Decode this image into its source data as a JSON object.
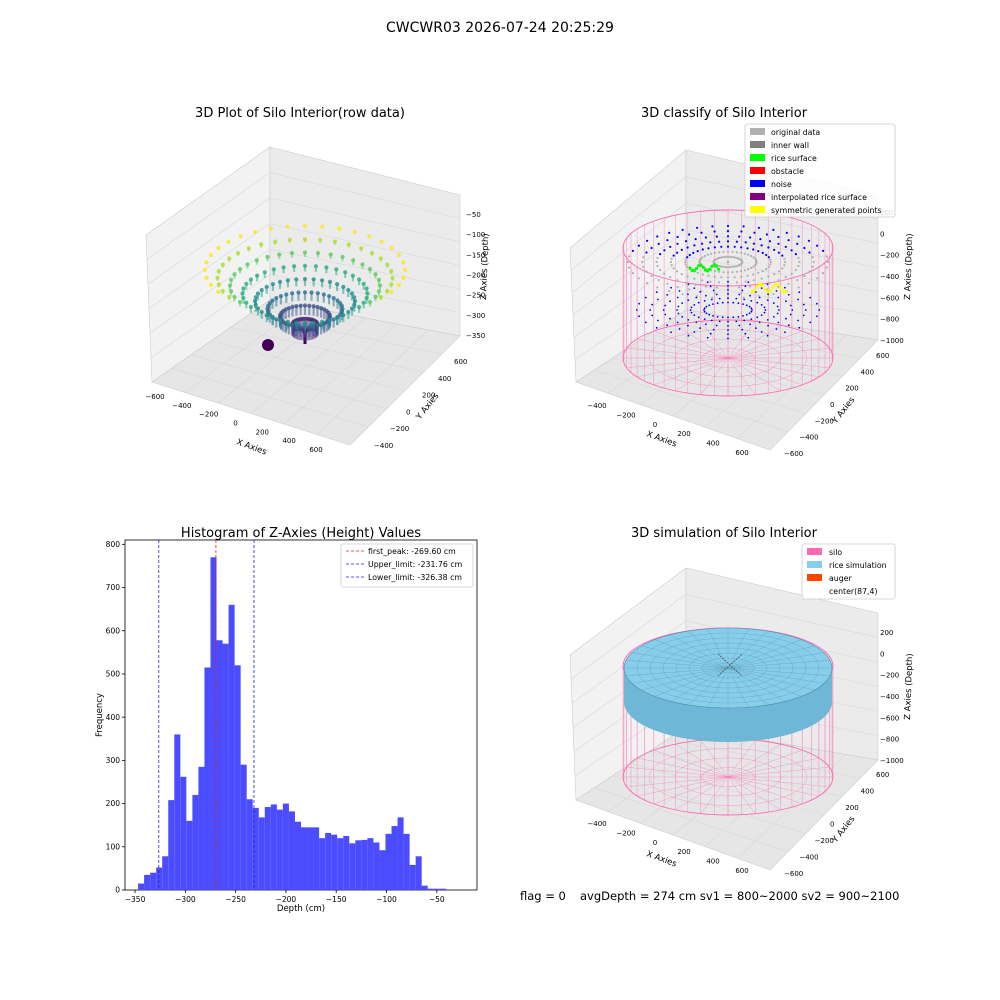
{
  "figure": {
    "suptitle": "CWCWR03 2026-07-24 20:25:29",
    "footer": {
      "flag": "flag = 0",
      "stats": "avgDepth = 274 cm  sv1 = 800~2000  sv2 = 900~2100"
    }
  },
  "colors": {
    "hist_bar": "#4b4bff",
    "first_peak_line": "#e02020",
    "limit_line": "#2020e0",
    "silo": "#ff69b4",
    "rice_simulation": "#87ceeb",
    "auger": "#ff4500",
    "inner_wall": "#808080",
    "rice_surface": "#00ff00",
    "obstacle": "#ff0000",
    "noise": "#0000ff",
    "interpolated": "#800080",
    "symmetric": "#ffff00",
    "original": "#b0b0b0"
  },
  "chart_data": [
    {
      "type": "scatter",
      "panel": "top-left",
      "title": "3D Plot of Silo Interior(row data)",
      "xlabel": "X Axies",
      "ylabel": "Y Axies",
      "zlabel": "Z Axies (Depth)",
      "x_ticks": [
        "−600",
        "−400",
        "−200",
        "0",
        "200",
        "400",
        "600"
      ],
      "y_ticks": [
        "−400",
        "−200",
        "0",
        "200",
        "400",
        "600"
      ],
      "z_ticks": [
        "−50",
        "−100",
        "−150",
        "−200",
        "−250",
        "−300",
        "−350"
      ],
      "colormap": "viridis"
    },
    {
      "type": "scatter",
      "panel": "top-right",
      "title": "3D classify of Silo Interior",
      "xlabel": "X Axies",
      "ylabel": "Y Axies",
      "zlabel": "Z Axies (Depth)",
      "x_ticks": [
        "−400",
        "−200",
        "0",
        "200",
        "400",
        "600"
      ],
      "y_ticks": [
        "−600",
        "−400",
        "−200",
        "0",
        "200",
        "400",
        "600"
      ],
      "z_ticks": [
        "200",
        "0",
        "−200",
        "−400",
        "−600",
        "−800",
        "−1000"
      ],
      "legend": [
        {
          "label": "original data",
          "color": "#b0b0b0"
        },
        {
          "label": "inner wall",
          "color": "#808080"
        },
        {
          "label": "rice surface",
          "color": "#00ff00"
        },
        {
          "label": "obstacle",
          "color": "#ff0000"
        },
        {
          "label": "noise",
          "color": "#0000ff"
        },
        {
          "label": "interpolated rice surface",
          "color": "#800080"
        },
        {
          "label": "symmetric generated points",
          "color": "#ffff00"
        }
      ],
      "legend_position": "upper-right"
    },
    {
      "type": "bar",
      "panel": "bottom-left",
      "title": "Histogram of Z-Axies (Height) Values",
      "xlabel": "Depth (cm)",
      "ylabel": "Frequency",
      "xlim": [
        -360,
        -10
      ],
      "ylim": [
        0,
        810
      ],
      "x_ticks": [
        -350,
        -300,
        -250,
        -200,
        -150,
        -100,
        -50
      ],
      "x_tick_labels": [
        "−350",
        "−300",
        "−250",
        "−200",
        "−150",
        "−100",
        "−50"
      ],
      "y_ticks": [
        0,
        100,
        200,
        300,
        400,
        500,
        600,
        700,
        800
      ],
      "bin_width": 6,
      "bin_start": -347,
      "values": [
        15,
        35,
        40,
        52,
        78,
        208,
        360,
        262,
        160,
        220,
        285,
        515,
        770,
        578,
        570,
        660,
        520,
        290,
        210,
        190,
        168,
        192,
        198,
        186,
        200,
        182,
        158,
        145,
        145,
        145,
        120,
        132,
        128,
        120,
        125,
        108,
        115,
        116,
        120,
        110,
        92,
        130,
        148,
        168,
        130,
        58,
        78,
        10,
        3,
        3,
        3
      ],
      "vlines": [
        {
          "value": -269.6,
          "label": "first_peak: -269.60 cm",
          "color": "#e02020"
        },
        {
          "value": -231.76,
          "label": "Upper_limit: -231.76 cm",
          "color": "#2020e0"
        },
        {
          "value": -326.38,
          "label": "Lower_limit: -326.38 cm",
          "color": "#2020e0"
        }
      ],
      "legend_position": "upper-right",
      "grid": false
    },
    {
      "type": "scatter",
      "panel": "bottom-right",
      "title": "3D simulation of Silo Interior",
      "xlabel": "X Axies",
      "ylabel": "Y Axies",
      "zlabel": "Z Axies (Depth)",
      "x_ticks": [
        "−400",
        "−200",
        "0",
        "200",
        "400",
        "600"
      ],
      "y_ticks": [
        "−600",
        "−400",
        "−200",
        "0",
        "200",
        "400",
        "600"
      ],
      "z_ticks": [
        "200",
        "0",
        "−200",
        "−400",
        "−600",
        "−800",
        "−1000"
      ],
      "legend": [
        {
          "label": "silo",
          "color": "#ff69b4"
        },
        {
          "label": "rice simulation",
          "color": "#87ceeb"
        },
        {
          "label": "auger",
          "color": "#ff4500"
        },
        {
          "label": "center(87,4)",
          "color": ""
        }
      ],
      "legend_position": "upper-right"
    }
  ]
}
